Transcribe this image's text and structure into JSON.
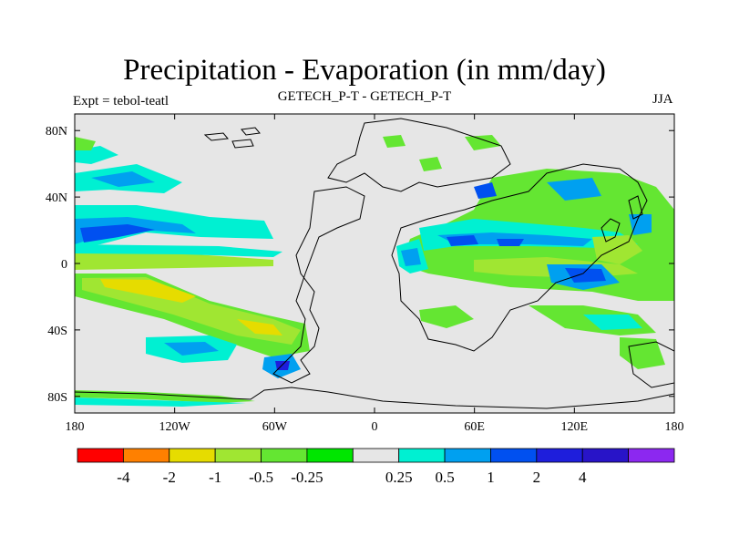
{
  "title": "Precipitation - Evaporation (in mm/day)",
  "subtitle_left": "Expt = tebol-teatl",
  "subtitle_center": "GETECH_P-T - GETECH_P-T",
  "subtitle_right": "JJA",
  "map": {
    "x_range": [
      -180,
      180
    ],
    "y_range": [
      -90,
      90
    ],
    "x_ticks": [
      {
        "value": -180,
        "label": "180"
      },
      {
        "value": -120,
        "label": "120W"
      },
      {
        "value": -60,
        "label": "60W"
      },
      {
        "value": 0,
        "label": "0"
      },
      {
        "value": 60,
        "label": "60E"
      },
      {
        "value": 120,
        "label": "120E"
      },
      {
        "value": 180,
        "label": "180"
      }
    ],
    "y_ticks": [
      {
        "value": 80,
        "label": "80N"
      },
      {
        "value": 40,
        "label": "40N"
      },
      {
        "value": 0,
        "label": "0"
      },
      {
        "value": -40,
        "label": "40S"
      },
      {
        "value": -80,
        "label": "80S"
      }
    ],
    "background_color": "#e6e6e6"
  },
  "colorbar": {
    "colors": [
      "#ff0000",
      "#ff8000",
      "#e6dc00",
      "#a0e632",
      "#64e632",
      "#00e600",
      "#e6e6e6",
      "#00f0d2",
      "#00a0f0",
      "#0050f0",
      "#1e1edc",
      "#2814c8",
      "#8c28f0"
    ],
    "labels": [
      "-4",
      "-2",
      "-1",
      "-0.5",
      "-0.25",
      "0.25",
      "0.5",
      "1",
      "2",
      "4"
    ]
  }
}
